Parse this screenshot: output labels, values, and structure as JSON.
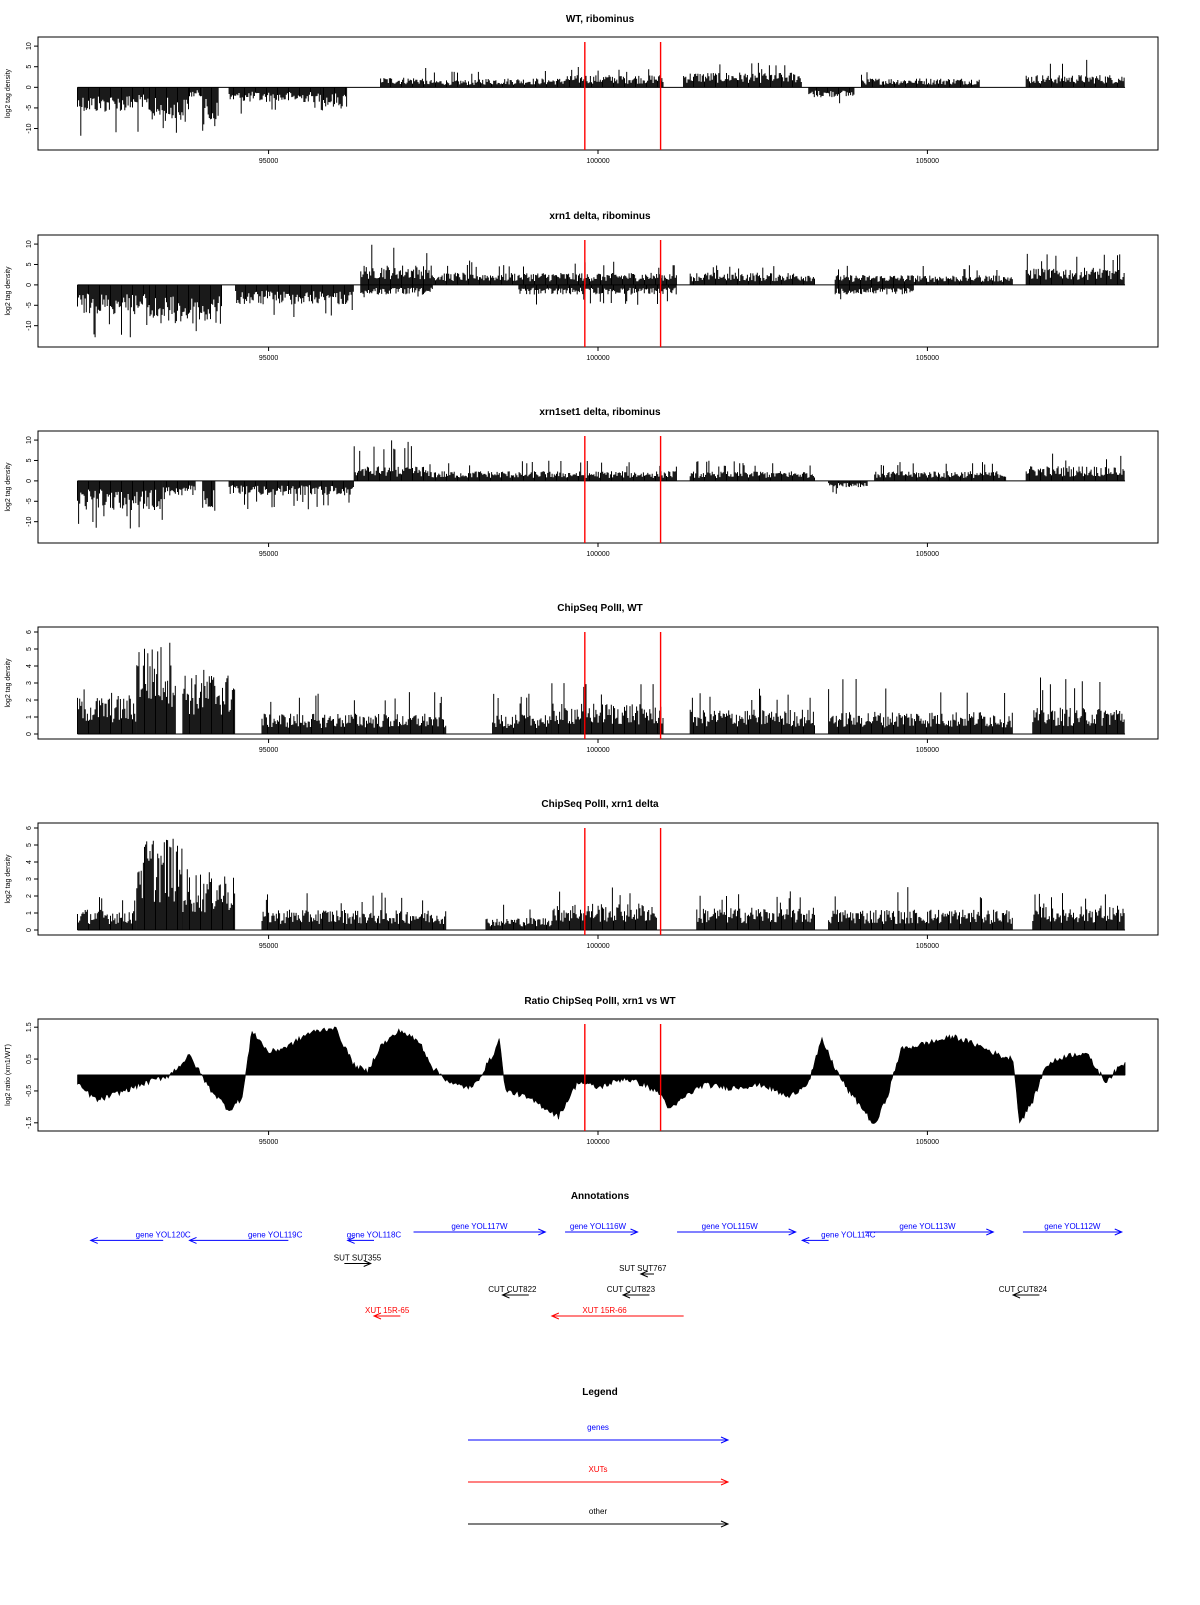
{
  "window": {
    "title": ""
  },
  "chart_data": [
    {
      "id": "wt_ribominus",
      "type": "bar",
      "title": "WT, ribominus",
      "ylabel": "log2 tag density",
      "xlabel": "",
      "xlim": [
        91500,
        108500
      ],
      "ylim": [
        -14,
        11
      ],
      "yticks": [
        "10",
        "5",
        "0",
        "-5",
        "-10"
      ],
      "ytick_values": [
        10,
        5,
        0,
        -5,
        -10
      ],
      "xticks": [
        "95000",
        "100000",
        "105000"
      ],
      "xtick_values": [
        95000,
        100000,
        105000
      ],
      "markers": [
        99800,
        100950
      ],
      "grid": false,
      "segments": [
        {
          "start": 92100,
          "end": 93200,
          "level": -5,
          "dir": -1,
          "spike": -13
        },
        {
          "start": 93200,
          "end": 93800,
          "level": -7,
          "dir": -1,
          "spike": -13
        },
        {
          "start": 93800,
          "end": 94000,
          "level": -2,
          "dir": -1,
          "spike": -5
        },
        {
          "start": 94000,
          "end": 94250,
          "level": -8,
          "dir": -1,
          "spike": -12
        },
        {
          "start": 94400,
          "end": 95800,
          "level": -3,
          "dir": -1,
          "spike": -7
        },
        {
          "start": 95800,
          "end": 96200,
          "level": -4,
          "dir": -1,
          "spike": -6
        },
        {
          "start": 96700,
          "end": 97400,
          "level": 2,
          "dir": 1,
          "spike": 5
        },
        {
          "start": 97400,
          "end": 98200,
          "level": 1.5,
          "dir": 1,
          "spike": 4
        },
        {
          "start": 98200,
          "end": 99500,
          "level": 1.8,
          "dir": 1,
          "spike": 5
        },
        {
          "start": 99500,
          "end": 101000,
          "level": 2.5,
          "dir": 1,
          "spike": 5
        },
        {
          "start": 101300,
          "end": 103100,
          "level": 3,
          "dir": 1,
          "spike": 6
        },
        {
          "start": 103200,
          "end": 103900,
          "level": -2,
          "dir": -1,
          "spike": -4
        },
        {
          "start": 104000,
          "end": 105800,
          "level": 1.8,
          "dir": 1,
          "spike": 4
        },
        {
          "start": 106500,
          "end": 108000,
          "level": 2.5,
          "dir": 1,
          "spike": 7
        }
      ]
    },
    {
      "id": "xrn1_ribominus",
      "type": "bar",
      "title": "xrn1 delta, ribominus",
      "ylabel": "log2 tag density",
      "xlabel": "",
      "xlim": [
        91500,
        108500
      ],
      "ylim": [
        -14,
        11
      ],
      "yticks": [
        "10",
        "5",
        "0",
        "-5",
        "-10"
      ],
      "ytick_values": [
        10,
        5,
        0,
        -5,
        -10
      ],
      "xticks": [
        "95000",
        "100000",
        "105000"
      ],
      "xtick_values": [
        95000,
        100000,
        105000
      ],
      "markers": [
        99800,
        100950
      ],
      "grid": false,
      "segments": [
        {
          "start": 92100,
          "end": 93200,
          "level": -6,
          "dir": -1,
          "spike": -13
        },
        {
          "start": 93200,
          "end": 94300,
          "level": -8,
          "dir": -1,
          "spike": -13
        },
        {
          "start": 94500,
          "end": 96300,
          "level": -4,
          "dir": -1,
          "spike": -8
        },
        {
          "start": 96400,
          "end": 97500,
          "level": 4,
          "dir": 1,
          "spike": 10
        },
        {
          "start": 96400,
          "end": 97500,
          "level": -2,
          "dir": -1,
          "spike": -4
        },
        {
          "start": 97500,
          "end": 101200,
          "level": 2.5,
          "dir": 1,
          "spike": 6
        },
        {
          "start": 98800,
          "end": 101200,
          "level": -2,
          "dir": -1,
          "spike": -5
        },
        {
          "start": 101400,
          "end": 103300,
          "level": 2.5,
          "dir": 1,
          "spike": 5
        },
        {
          "start": 103600,
          "end": 106300,
          "level": 2,
          "dir": 1,
          "spike": 5
        },
        {
          "start": 103600,
          "end": 104800,
          "level": -2,
          "dir": -1,
          "spike": -5
        },
        {
          "start": 106500,
          "end": 108000,
          "level": 3.5,
          "dir": 1,
          "spike": 8
        }
      ]
    },
    {
      "id": "xrn1set1_ribominus",
      "type": "bar",
      "title": "xrn1set1 delta, ribominus",
      "ylabel": "log2 tag density",
      "xlabel": "",
      "xlim": [
        91500,
        108500
      ],
      "ylim": [
        -14,
        11
      ],
      "yticks": [
        "10",
        "5",
        "0",
        "-5",
        "-10"
      ],
      "ytick_values": [
        10,
        5,
        0,
        -5,
        -10
      ],
      "xticks": [
        "95000",
        "100000",
        "105000"
      ],
      "xtick_values": [
        95000,
        100000,
        105000
      ],
      "markers": [
        99800,
        100950
      ],
      "grid": false,
      "segments": [
        {
          "start": 92100,
          "end": 93400,
          "level": -6,
          "dir": -1,
          "spike": -12
        },
        {
          "start": 93400,
          "end": 93900,
          "level": -3,
          "dir": -1,
          "spike": -6
        },
        {
          "start": 94000,
          "end": 94200,
          "level": -6,
          "dir": -1,
          "spike": -10
        },
        {
          "start": 94400,
          "end": 96300,
          "level": -3,
          "dir": -1,
          "spike": -7
        },
        {
          "start": 96300,
          "end": 97400,
          "level": 3,
          "dir": 1,
          "spike": 10
        },
        {
          "start": 97400,
          "end": 101200,
          "level": 2,
          "dir": 1,
          "spike": 5
        },
        {
          "start": 101400,
          "end": 103300,
          "level": 2,
          "dir": 1,
          "spike": 5
        },
        {
          "start": 103500,
          "end": 104100,
          "level": -1.5,
          "dir": -1,
          "spike": -4
        },
        {
          "start": 104200,
          "end": 106200,
          "level": 2,
          "dir": 1,
          "spike": 5
        },
        {
          "start": 106500,
          "end": 108000,
          "level": 3,
          "dir": 1,
          "spike": 7
        }
      ]
    },
    {
      "id": "chipseq_wt",
      "type": "bar",
      "title": "ChipSeq PolII, WT",
      "ylabel": "log2 tag density",
      "xlabel": "",
      "xlim": [
        91500,
        108500
      ],
      "ylim": [
        0,
        6
      ],
      "yticks": [
        "0",
        "1",
        "2",
        "3",
        "4",
        "5",
        "6"
      ],
      "ytick_values": [
        0,
        1,
        2,
        3,
        4,
        5,
        6
      ],
      "xticks": [
        "95000",
        "100000",
        "105000"
      ],
      "xtick_values": [
        95000,
        100000,
        105000
      ],
      "markers": [
        99800,
        100950
      ],
      "grid": false,
      "segments": [
        {
          "start": 92100,
          "end": 93000,
          "level": 1.8,
          "dir": 1,
          "spike": 2.8
        },
        {
          "start": 93000,
          "end": 93600,
          "level": 4.5,
          "dir": 1,
          "spike": 5.9
        },
        {
          "start": 93700,
          "end": 94500,
          "level": 3,
          "dir": 1,
          "spike": 4.2
        },
        {
          "start": 94900,
          "end": 97700,
          "level": 1,
          "dir": 1,
          "spike": 2.5
        },
        {
          "start": 98400,
          "end": 99300,
          "level": 1,
          "dir": 1,
          "spike": 2.5
        },
        {
          "start": 99300,
          "end": 101000,
          "level": 1.5,
          "dir": 1,
          "spike": 3.1
        },
        {
          "start": 101400,
          "end": 103300,
          "level": 1.2,
          "dir": 1,
          "spike": 2.8
        },
        {
          "start": 103500,
          "end": 106300,
          "level": 1.1,
          "dir": 1,
          "spike": 3.3
        },
        {
          "start": 106600,
          "end": 108000,
          "level": 1.3,
          "dir": 1,
          "spike": 3.4
        }
      ]
    },
    {
      "id": "chipseq_xrn1",
      "type": "bar",
      "title": "ChipSeq PolII, xrn1 delta",
      "ylabel": "log2 tag density",
      "xlabel": "",
      "xlim": [
        91500,
        108500
      ],
      "ylim": [
        0,
        6
      ],
      "yticks": [
        "0",
        "1",
        "2",
        "3",
        "4",
        "5",
        "6"
      ],
      "ytick_values": [
        0,
        1,
        2,
        3,
        4,
        5,
        6
      ],
      "xticks": [
        "95000",
        "100000",
        "105000"
      ],
      "xtick_values": [
        95000,
        100000,
        105000
      ],
      "markers": [
        99800,
        100950
      ],
      "grid": false,
      "segments": [
        {
          "start": 92100,
          "end": 93000,
          "level": 1,
          "dir": 1,
          "spike": 2.2
        },
        {
          "start": 93000,
          "end": 93700,
          "level": 4.5,
          "dir": 1,
          "spike": 5.3
        },
        {
          "start": 93700,
          "end": 94500,
          "level": 2.8,
          "dir": 1,
          "spike": 4.2
        },
        {
          "start": 94900,
          "end": 97700,
          "level": 1,
          "dir": 1,
          "spike": 2.2
        },
        {
          "start": 98300,
          "end": 99300,
          "level": 0.6,
          "dir": 1,
          "spike": 1.6
        },
        {
          "start": 99300,
          "end": 100900,
          "level": 1.3,
          "dir": 1,
          "spike": 2.6
        },
        {
          "start": 101500,
          "end": 103300,
          "level": 1.1,
          "dir": 1,
          "spike": 2.3
        },
        {
          "start": 103500,
          "end": 106300,
          "level": 1,
          "dir": 1,
          "spike": 2.6
        },
        {
          "start": 106600,
          "end": 108000,
          "level": 1.2,
          "dir": 1,
          "spike": 2.2
        }
      ]
    },
    {
      "id": "ratio_chipseq",
      "type": "area",
      "title": "Ratio ChipSeq PolII, xrn1 vs WT",
      "ylabel": "log2 ratio (xrn1/WT)",
      "xlabel": "",
      "xlim": [
        91500,
        108500
      ],
      "ylim": [
        -1.6,
        1.6
      ],
      "yticks": [
        "1.5",
        "0.5",
        "-0.5",
        "-1.5"
      ],
      "ytick_values": [
        1.5,
        0.5,
        -0.5,
        -1.5
      ],
      "xticks": [
        "95000",
        "100000",
        "105000"
      ],
      "xtick_values": [
        95000,
        100000,
        105000
      ],
      "markers": [
        99800,
        100950
      ],
      "grid": false,
      "x": [
        92100,
        92400,
        92800,
        93200,
        93500,
        93800,
        94100,
        94400,
        94600,
        94750,
        95000,
        95300,
        95600,
        96000,
        96300,
        96500,
        96700,
        97000,
        97300,
        97500,
        97800,
        98100,
        98400,
        98500,
        98600,
        98800,
        99100,
        99400,
        99700,
        100000,
        100400,
        100700,
        100950,
        101100,
        101300,
        101600,
        102000,
        102500,
        102900,
        103200,
        103400,
        103600,
        103800,
        104000,
        104200,
        104400,
        104600,
        105000,
        105400,
        105800,
        106100,
        106300,
        106400,
        106600,
        106800,
        107100,
        107400,
        107700,
        108000
      ],
      "y": [
        -0.3,
        -0.8,
        -0.5,
        -0.2,
        0.0,
        0.6,
        -0.4,
        -1.1,
        -0.7,
        1.4,
        0.7,
        0.9,
        1.3,
        1.5,
        0.3,
        0.1,
        0.9,
        1.4,
        1.0,
        0.2,
        -0.3,
        -0.4,
        0.6,
        1.1,
        -0.5,
        -0.6,
        -0.9,
        -1.3,
        -0.2,
        -0.4,
        -0.1,
        -0.3,
        -0.6,
        -1.1,
        -0.7,
        -0.3,
        -0.4,
        -0.3,
        -0.7,
        -0.2,
        1.1,
        0.2,
        -0.5,
        -1.0,
        -1.6,
        -0.6,
        0.8,
        1.0,
        1.2,
        0.9,
        0.6,
        0.5,
        -1.5,
        -0.8,
        0.3,
        0.6,
        0.7,
        -0.2,
        0.4
      ]
    },
    {
      "id": "annotations",
      "type": "other",
      "title": "Annotations",
      "xlim": [
        91500,
        108500
      ],
      "features": [
        {
          "label": "gene YOL120C",
          "start": 92300,
          "end": 93400,
          "strand": "-",
          "row": 0.8,
          "kind": "gene",
          "label_at": 93400
        },
        {
          "label": "gene YOL119C",
          "start": 93800,
          "end": 95300,
          "strand": "-",
          "row": 0.8,
          "kind": "gene",
          "label_at": 95100
        },
        {
          "label": "gene YOL118C",
          "start": 96200,
          "end": 96600,
          "strand": "-",
          "row": 0.8,
          "kind": "gene",
          "label_at": 96600
        },
        {
          "label": "gene YOL117W",
          "start": 97200,
          "end": 99200,
          "strand": "+",
          "row": 0,
          "kind": "gene",
          "label_at": 98200
        },
        {
          "label": "gene YOL116W",
          "start": 99500,
          "end": 100600,
          "strand": "+",
          "row": 0,
          "kind": "gene",
          "label_at": 100000
        },
        {
          "label": "gene YOL115W",
          "start": 101200,
          "end": 103000,
          "strand": "+",
          "row": 0,
          "kind": "gene",
          "label_at": 102000
        },
        {
          "label": "gene YOL114C",
          "start": 103100,
          "end": 103500,
          "strand": "-",
          "row": 0.8,
          "kind": "gene",
          "label_at": 103800
        },
        {
          "label": "gene YOL113W",
          "start": 104050,
          "end": 106000,
          "strand": "+",
          "row": 0,
          "kind": "gene",
          "label_at": 105000
        },
        {
          "label": "gene YOL112W",
          "start": 106450,
          "end": 107950,
          "strand": "+",
          "row": 0,
          "kind": "gene",
          "label_at": 107200
        },
        {
          "label": "SUT SUT355",
          "start": 96150,
          "end": 96550,
          "strand": "+",
          "row": 3,
          "kind": "other",
          "label_at": 96350
        },
        {
          "label": "SUT SUT767",
          "start": 100650,
          "end": 100850,
          "strand": "-",
          "row": 4,
          "kind": "other",
          "label_at": 100680
        },
        {
          "label": "CUT CUT822",
          "start": 98550,
          "end": 98950,
          "strand": "-",
          "row": 6,
          "kind": "other",
          "label_at": 98700
        },
        {
          "label": "CUT CUT823",
          "start": 100380,
          "end": 100780,
          "strand": "-",
          "row": 6,
          "kind": "other",
          "label_at": 100500
        },
        {
          "label": "CUT CUT824",
          "start": 106300,
          "end": 106700,
          "strand": "-",
          "row": 6,
          "kind": "other",
          "label_at": 106450
        },
        {
          "label": "XUT 15R-65",
          "start": 96600,
          "end": 97000,
          "strand": "-",
          "row": 8,
          "kind": "xut",
          "label_at": 96800
        },
        {
          "label": "XUT 15R-66",
          "start": 99300,
          "end": 101300,
          "strand": "-",
          "row": 8,
          "kind": "xut",
          "label_at": 100100
        }
      ]
    }
  ],
  "legend": {
    "title": "Legend",
    "items": [
      {
        "label": "genes",
        "color": "#0000ff"
      },
      {
        "label": "XUTs",
        "color": "#ff0000"
      },
      {
        "label": "other",
        "color": "#000000"
      }
    ]
  },
  "colors": {
    "gene": "#0000ff",
    "xut": "#ff0000",
    "other": "#000000",
    "marker": "#ff0000",
    "bar": "#000000"
  }
}
